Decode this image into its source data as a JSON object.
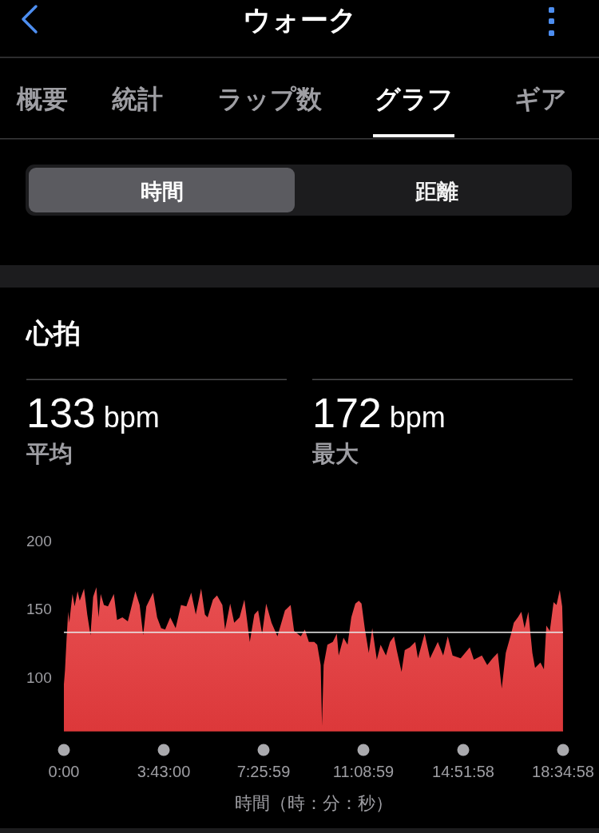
{
  "chart_data": [
    {
      "type": "other",
      "title": "ウォーク",
      "annotations": [
        "概要",
        "統計",
        "ラップ数",
        "グラフ",
        "ギア",
        "時間",
        "距離"
      ]
    },
    {
      "type": "area",
      "title": "心拍",
      "annotations": [
        "133 bpm",
        "平均",
        "172 bpm",
        "最大"
      ],
      "xlabel": "時間（時：分：秒）",
      "color": "#e83b3d",
      "xlim": [
        0,
        18.5828
      ],
      "ylim": [
        61,
        200
      ],
      "xticks": [
        {
          "value": 0,
          "label": "0:00"
        },
        {
          "value": 3.7167,
          "label": "3:43:00"
        },
        {
          "value": 7.4331,
          "label": "7:25:59"
        },
        {
          "value": 11.1497,
          "label": "11:08:59"
        },
        {
          "value": 14.8661,
          "label": "14:51:58"
        },
        {
          "value": 18.5828,
          "label": "18:34:58"
        }
      ],
      "yticks": [
        100,
        150,
        200
      ],
      "ref_lines": [
        {
          "axis": "y",
          "value": 133,
          "color": "#e6e6e6"
        }
      ],
      "x": [
        0,
        0.04,
        0.1,
        0.16,
        0.2,
        0.32,
        0.4,
        0.51,
        0.59,
        0.75,
        0.87,
        0.99,
        1.09,
        1.21,
        1.29,
        1.37,
        1.49,
        1.64,
        1.76,
        1.86,
        1.98,
        2.18,
        2.38,
        2.66,
        2.82,
        2.95,
        3.07,
        3.32,
        3.47,
        3.62,
        3.77,
        3.96,
        4.16,
        4.36,
        4.56,
        4.74,
        4.91,
        5.11,
        5.25,
        5.35,
        5.55,
        5.7,
        5.9,
        6.0,
        6.19,
        6.34,
        6.54,
        6.72,
        6.92,
        7.09,
        7.23,
        7.38,
        7.53,
        7.73,
        7.95,
        8.23,
        8.44,
        8.57,
        8.82,
        8.97,
        9.12,
        9.32,
        9.43,
        9.56,
        9.61,
        9.67,
        9.81,
        10.01,
        10.16,
        10.23,
        10.41,
        10.56,
        10.7,
        10.85,
        10.98,
        11.08,
        11.2,
        11.35,
        11.48,
        11.65,
        11.79,
        11.99,
        12.14,
        12.29,
        12.39,
        12.57,
        12.69,
        12.88,
        13.08,
        13.18,
        13.43,
        13.63,
        13.92,
        14.12,
        14.29,
        14.47,
        14.77,
        15.11,
        15.26,
        15.56,
        15.76,
        15.96,
        16.15,
        16.3,
        16.45,
        16.65,
        16.75,
        16.9,
        17.03,
        17.15,
        17.29,
        17.44,
        17.54,
        17.74,
        17.87,
        17.96,
        18.09,
        18.23,
        18.34,
        18.46,
        18.55,
        18.58
      ],
      "values": [
        95,
        105,
        128,
        148,
        140,
        161,
        152,
        163,
        156,
        165,
        146,
        131,
        159,
        166,
        144,
        161,
        153,
        152,
        157,
        161,
        142,
        144,
        141,
        163,
        153,
        131,
        152,
        162,
        144,
        136,
        135,
        144,
        136,
        153,
        152,
        162,
        146,
        165,
        146,
        144,
        157,
        160,
        153,
        135,
        154,
        140,
        144,
        157,
        126,
        146,
        149,
        132,
        154,
        140,
        130,
        149,
        153,
        134,
        130,
        135,
        126,
        126,
        124,
        109,
        65,
        109,
        124,
        126,
        132,
        116,
        129,
        124,
        144,
        154,
        156,
        154,
        136,
        118,
        136,
        113,
        124,
        116,
        126,
        130,
        120,
        104,
        120,
        122,
        126,
        114,
        132,
        114,
        126,
        116,
        130,
        116,
        114,
        122,
        113,
        116,
        109,
        114,
        118,
        92,
        118,
        132,
        140,
        144,
        148,
        136,
        148,
        118,
        107,
        111,
        106,
        138,
        134,
        155,
        153,
        164,
        152,
        130
      ]
    }
  ]
}
